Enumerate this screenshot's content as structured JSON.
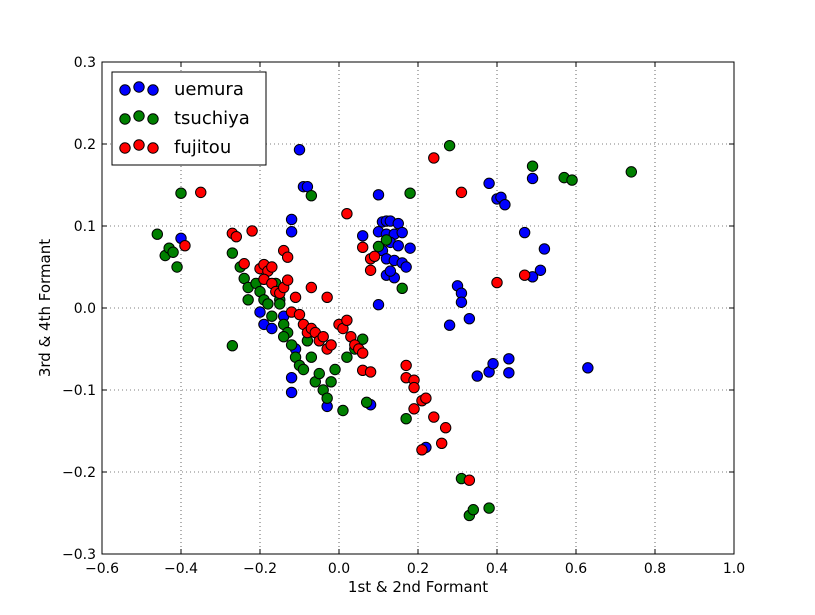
{
  "chart_data": {
    "type": "scatter",
    "xlabel": "1st & 2nd Formant",
    "ylabel": "3rd & 4th Formant",
    "xlim": [
      -0.6,
      1.0
    ],
    "ylim": [
      -0.3,
      0.3
    ],
    "xticks": [
      -0.6,
      -0.4,
      -0.2,
      0.0,
      0.2,
      0.4,
      0.6,
      0.8,
      1.0
    ],
    "yticks": [
      -0.3,
      -0.2,
      -0.1,
      0.0,
      0.1,
      0.2,
      0.3
    ],
    "xtick_labels": [
      "−0.6",
      "−0.4",
      "−0.2",
      "0.0",
      "0.2",
      "0.4",
      "0.6",
      "0.8",
      "1.0"
    ],
    "ytick_labels": [
      "−0.3",
      "−0.2",
      "−0.1",
      "0.0",
      "0.1",
      "0.2",
      "0.3"
    ],
    "grid": true,
    "legend_position": "top-left",
    "series": [
      {
        "name": "uemura",
        "color": "#0000ff",
        "points": [
          [
            -0.1,
            0.193
          ],
          [
            -0.09,
            0.148
          ],
          [
            -0.08,
            0.148
          ],
          [
            -0.12,
            0.108
          ],
          [
            -0.12,
            0.093
          ],
          [
            -0.4,
            0.085
          ],
          [
            -0.2,
            -0.005
          ],
          [
            -0.19,
            -0.02
          ],
          [
            -0.17,
            -0.025
          ],
          [
            -0.14,
            -0.01
          ],
          [
            -0.12,
            -0.085
          ],
          [
            -0.12,
            -0.103
          ],
          [
            -0.11,
            -0.05
          ],
          [
            -0.03,
            -0.12
          ],
          [
            0.08,
            -0.118
          ],
          [
            0.1,
            0.138
          ],
          [
            0.11,
            0.105
          ],
          [
            0.12,
            0.106
          ],
          [
            0.13,
            0.106
          ],
          [
            0.15,
            0.103
          ],
          [
            0.1,
            0.093
          ],
          [
            0.12,
            0.09
          ],
          [
            0.14,
            0.09
          ],
          [
            0.16,
            0.092
          ],
          [
            0.06,
            0.088
          ],
          [
            0.13,
            0.08
          ],
          [
            0.15,
            0.076
          ],
          [
            0.18,
            0.073
          ],
          [
            0.11,
            0.07
          ],
          [
            0.12,
            0.06
          ],
          [
            0.14,
            0.058
          ],
          [
            0.16,
            0.055
          ],
          [
            0.17,
            0.05
          ],
          [
            0.12,
            0.04
          ],
          [
            0.14,
            0.037
          ],
          [
            0.13,
            0.045
          ],
          [
            0.1,
            0.004
          ],
          [
            0.3,
            0.027
          ],
          [
            0.31,
            0.018
          ],
          [
            0.31,
            0.007
          ],
          [
            0.28,
            -0.021
          ],
          [
            0.33,
            -0.013
          ],
          [
            0.35,
            -0.083
          ],
          [
            0.38,
            -0.078
          ],
          [
            0.39,
            -0.068
          ],
          [
            0.43,
            -0.062
          ],
          [
            0.43,
            -0.079
          ],
          [
            0.38,
            0.152
          ],
          [
            0.4,
            0.133
          ],
          [
            0.41,
            0.135
          ],
          [
            0.42,
            0.126
          ],
          [
            0.47,
            0.092
          ],
          [
            0.49,
            0.158
          ],
          [
            0.52,
            0.072
          ],
          [
            0.51,
            0.046
          ],
          [
            0.49,
            0.038
          ],
          [
            0.63,
            -0.073
          ],
          [
            0.22,
            -0.17
          ]
        ]
      },
      {
        "name": "tsuchiya",
        "color": "#008000",
        "points": [
          [
            -0.46,
            0.09
          ],
          [
            -0.44,
            0.064
          ],
          [
            -0.43,
            0.073
          ],
          [
            -0.42,
            0.068
          ],
          [
            -0.41,
            0.05
          ],
          [
            -0.4,
            0.14
          ],
          [
            -0.27,
            0.067
          ],
          [
            -0.25,
            0.05
          ],
          [
            -0.24,
            0.036
          ],
          [
            -0.23,
            0.025
          ],
          [
            -0.23,
            0.01
          ],
          [
            -0.21,
            0.03
          ],
          [
            -0.2,
            0.02
          ],
          [
            -0.19,
            0.01
          ],
          [
            -0.18,
            0.005
          ],
          [
            -0.17,
            -0.01
          ],
          [
            -0.16,
            0.03
          ],
          [
            -0.15,
            0.01
          ],
          [
            -0.14,
            -0.02
          ],
          [
            -0.13,
            -0.03
          ],
          [
            -0.12,
            -0.045
          ],
          [
            -0.11,
            -0.06
          ],
          [
            -0.1,
            -0.07
          ],
          [
            -0.09,
            -0.075
          ],
          [
            -0.08,
            -0.04
          ],
          [
            -0.07,
            -0.06
          ],
          [
            -0.06,
            -0.09
          ],
          [
            -0.05,
            -0.08
          ],
          [
            -0.04,
            -0.1
          ],
          [
            -0.03,
            -0.11
          ],
          [
            -0.02,
            -0.09
          ],
          [
            -0.01,
            -0.075
          ],
          [
            -0.27,
            -0.046
          ],
          [
            -0.07,
            0.137
          ],
          [
            -0.15,
            0.005
          ],
          [
            -0.14,
            -0.035
          ],
          [
            0.01,
            -0.125
          ],
          [
            0.02,
            -0.06
          ],
          [
            0.04,
            -0.05
          ],
          [
            0.06,
            -0.038
          ],
          [
            0.07,
            -0.115
          ],
          [
            0.1,
            0.075
          ],
          [
            0.12,
            0.083
          ],
          [
            0.16,
            0.024
          ],
          [
            0.18,
            0.14
          ],
          [
            0.17,
            -0.135
          ],
          [
            0.28,
            0.198
          ],
          [
            0.31,
            -0.208
          ],
          [
            0.33,
            -0.253
          ],
          [
            0.34,
            -0.246
          ],
          [
            0.38,
            -0.244
          ],
          [
            0.49,
            0.173
          ],
          [
            0.57,
            0.159
          ],
          [
            0.59,
            0.156
          ],
          [
            0.74,
            0.166
          ]
        ]
      },
      {
        "name": "fujitou",
        "color": "#ff0000",
        "points": [
          [
            -0.35,
            0.141
          ],
          [
            -0.39,
            0.076
          ],
          [
            -0.27,
            0.091
          ],
          [
            -0.26,
            0.087
          ],
          [
            -0.24,
            0.054
          ],
          [
            -0.22,
            0.094
          ],
          [
            -0.2,
            0.048
          ],
          [
            -0.19,
            0.053
          ],
          [
            -0.18,
            0.045
          ],
          [
            -0.17,
            0.05
          ],
          [
            -0.19,
            0.035
          ],
          [
            -0.17,
            0.03
          ],
          [
            -0.16,
            0.02
          ],
          [
            -0.15,
            0.018
          ],
          [
            -0.14,
            0.025
          ],
          [
            -0.13,
            0.034
          ],
          [
            -0.14,
            0.07
          ],
          [
            -0.13,
            0.062
          ],
          [
            -0.12,
            -0.005
          ],
          [
            -0.1,
            -0.008
          ],
          [
            -0.09,
            -0.02
          ],
          [
            -0.08,
            -0.03
          ],
          [
            -0.07,
            -0.025
          ],
          [
            -0.06,
            -0.03
          ],
          [
            -0.05,
            -0.04
          ],
          [
            -0.04,
            -0.035
          ],
          [
            -0.03,
            -0.05
          ],
          [
            -0.02,
            -0.045
          ],
          [
            0.0,
            -0.02
          ],
          [
            0.01,
            -0.025
          ],
          [
            0.02,
            -0.015
          ],
          [
            0.03,
            -0.035
          ],
          [
            0.04,
            -0.045
          ],
          [
            0.05,
            -0.05
          ],
          [
            0.06,
            -0.055
          ],
          [
            0.06,
            -0.076
          ],
          [
            0.08,
            -0.078
          ],
          [
            0.02,
            0.115
          ],
          [
            0.06,
            0.074
          ],
          [
            0.08,
            0.06
          ],
          [
            0.08,
            0.046
          ],
          [
            -0.03,
            0.013
          ],
          [
            -0.07,
            0.025
          ],
          [
            -0.11,
            0.013
          ],
          [
            0.09,
            0.063
          ],
          [
            0.17,
            -0.07
          ],
          [
            0.17,
            -0.085
          ],
          [
            0.19,
            -0.088
          ],
          [
            0.19,
            -0.097
          ],
          [
            0.19,
            -0.123
          ],
          [
            0.21,
            -0.113
          ],
          [
            0.22,
            -0.11
          ],
          [
            0.21,
            -0.173
          ],
          [
            0.24,
            -0.133
          ],
          [
            0.24,
            0.183
          ],
          [
            0.27,
            -0.146
          ],
          [
            0.26,
            -0.165
          ],
          [
            0.31,
            0.141
          ],
          [
            0.33,
            -0.21
          ],
          [
            0.4,
            0.031
          ],
          [
            0.47,
            0.04
          ]
        ]
      }
    ]
  }
}
